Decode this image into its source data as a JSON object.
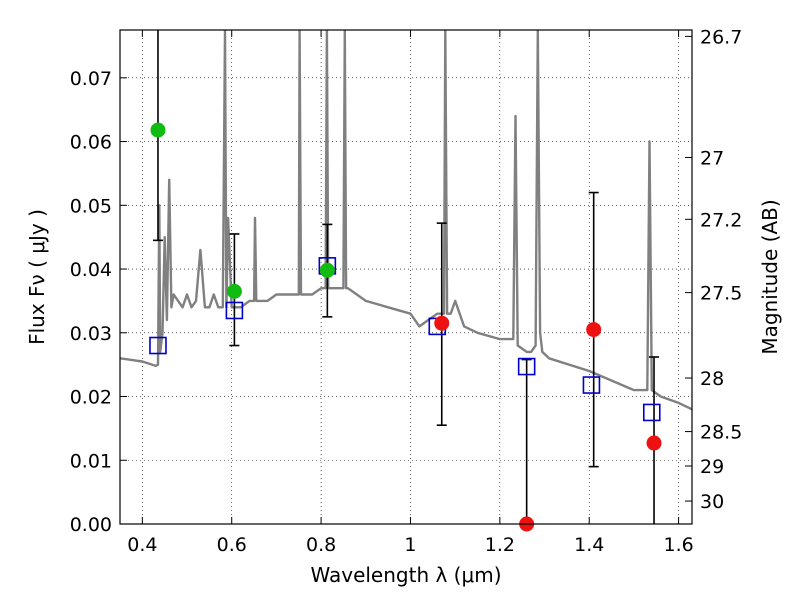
{
  "chart_data": {
    "type": "scatter",
    "xlabel": "Wavelength  λ (μm)",
    "ylabel_left": "Flux  Fν  ( μJy )",
    "ylabel_right": "Magnitude (AB)",
    "xlim": [
      0.35,
      1.63
    ],
    "ylim": [
      0.0,
      0.0775
    ],
    "grid": true,
    "x_ticks": [
      0.4,
      0.6,
      0.8,
      1.0,
      1.2,
      1.4,
      1.6
    ],
    "x_tick_labels": [
      "0.4",
      "0.6",
      "0.8",
      "1",
      "1.2",
      "1.4",
      "1.6"
    ],
    "y_ticks": [
      0.0,
      0.01,
      0.02,
      0.03,
      0.04,
      0.05,
      0.06,
      0.07
    ],
    "y_tick_labels": [
      "0.00",
      "0.01",
      "0.02",
      "0.03",
      "0.04",
      "0.05",
      "0.06",
      "0.07"
    ],
    "right_ticks": [
      {
        "label": "26.7",
        "flux": 0.0765
      },
      {
        "label": "27",
        "flux": 0.0575
      },
      {
        "label": "27.2",
        "flux": 0.0478
      },
      {
        "label": "27.5",
        "flux": 0.0363
      },
      {
        "label": "28",
        "flux": 0.0229
      },
      {
        "label": "28.5",
        "flux": 0.0145
      },
      {
        "label": "29",
        "flux": 0.0091
      },
      {
        "label": "30",
        "flux": 0.0036
      }
    ],
    "colors": {
      "model": "#808080",
      "model_phot": "#0000cc",
      "detected": "#11bb11",
      "low_sn": "#ee1111",
      "error_bar": "#000000"
    },
    "series": [
      {
        "name": "model spectrum",
        "kind": "line",
        "x": [
          0.35,
          0.4,
          0.43,
          0.435,
          0.438,
          0.44,
          0.445,
          0.45,
          0.455,
          0.46,
          0.465,
          0.47,
          0.48,
          0.49,
          0.5,
          0.51,
          0.52,
          0.53,
          0.54,
          0.55,
          0.56,
          0.57,
          0.58,
          0.585,
          0.588,
          0.592,
          0.6,
          0.62,
          0.64,
          0.65,
          0.652,
          0.655,
          0.66,
          0.68,
          0.7,
          0.72,
          0.74,
          0.75,
          0.752,
          0.755,
          0.76,
          0.78,
          0.8,
          0.81,
          0.813,
          0.816,
          0.82,
          0.84,
          0.85,
          0.853,
          0.856,
          0.86,
          0.9,
          0.95,
          1.0,
          1.02,
          1.04,
          1.06,
          1.075,
          1.078,
          1.082,
          1.09,
          1.1,
          1.12,
          1.15,
          1.2,
          1.22,
          1.23,
          1.235,
          1.24,
          1.26,
          1.27,
          1.28,
          1.285,
          1.29,
          1.295,
          1.31,
          1.4,
          1.5,
          1.52,
          1.53,
          1.535,
          1.54,
          1.56,
          1.6,
          1.63
        ],
        "y": [
          0.026,
          0.0255,
          0.0248,
          0.025,
          0.05,
          0.027,
          0.03,
          0.045,
          0.032,
          0.054,
          0.034,
          0.036,
          0.035,
          0.034,
          0.036,
          0.034,
          0.035,
          0.043,
          0.034,
          0.034,
          0.036,
          0.034,
          0.034,
          0.0775,
          0.034,
          0.048,
          0.034,
          0.034,
          0.035,
          0.035,
          0.048,
          0.035,
          0.035,
          0.035,
          0.036,
          0.036,
          0.036,
          0.036,
          0.0775,
          0.036,
          0.036,
          0.036,
          0.037,
          0.037,
          0.0775,
          0.037,
          0.037,
          0.037,
          0.037,
          0.0775,
          0.037,
          0.037,
          0.035,
          0.034,
          0.033,
          0.031,
          0.032,
          0.033,
          0.033,
          0.0775,
          0.033,
          0.033,
          0.035,
          0.031,
          0.03,
          0.029,
          0.029,
          0.029,
          0.064,
          0.028,
          0.027,
          0.027,
          0.028,
          0.0775,
          0.03,
          0.027,
          0.026,
          0.024,
          0.021,
          0.021,
          0.021,
          0.06,
          0.021,
          0.02,
          0.019,
          0.018
        ]
      },
      {
        "name": "model photometry",
        "kind": "square",
        "x": [
          0.435,
          0.606,
          0.814,
          1.06,
          1.26,
          1.405,
          1.54
        ],
        "y": [
          0.028,
          0.0335,
          0.0405,
          0.031,
          0.0247,
          0.0218,
          0.0175
        ]
      },
      {
        "name": "detections",
        "kind": "circle",
        "x": [
          0.435,
          0.606,
          0.814
        ],
        "y": [
          0.0618,
          0.0365,
          0.0398
        ],
        "err_lo": [
          0.0445,
          0.028,
          0.0325
        ],
        "err_hi": [
          0.0775,
          0.0455,
          0.047
        ]
      },
      {
        "name": "low S/N points",
        "kind": "circle",
        "x": [
          1.07,
          1.26,
          1.41,
          1.545
        ],
        "y": [
          0.0315,
          0.0,
          0.0305,
          0.0127
        ],
        "err_lo": [
          0.0155,
          0.0,
          0.009,
          0.0
        ],
        "err_hi": [
          0.0472,
          0.0258,
          0.052,
          0.0262
        ]
      }
    ]
  }
}
